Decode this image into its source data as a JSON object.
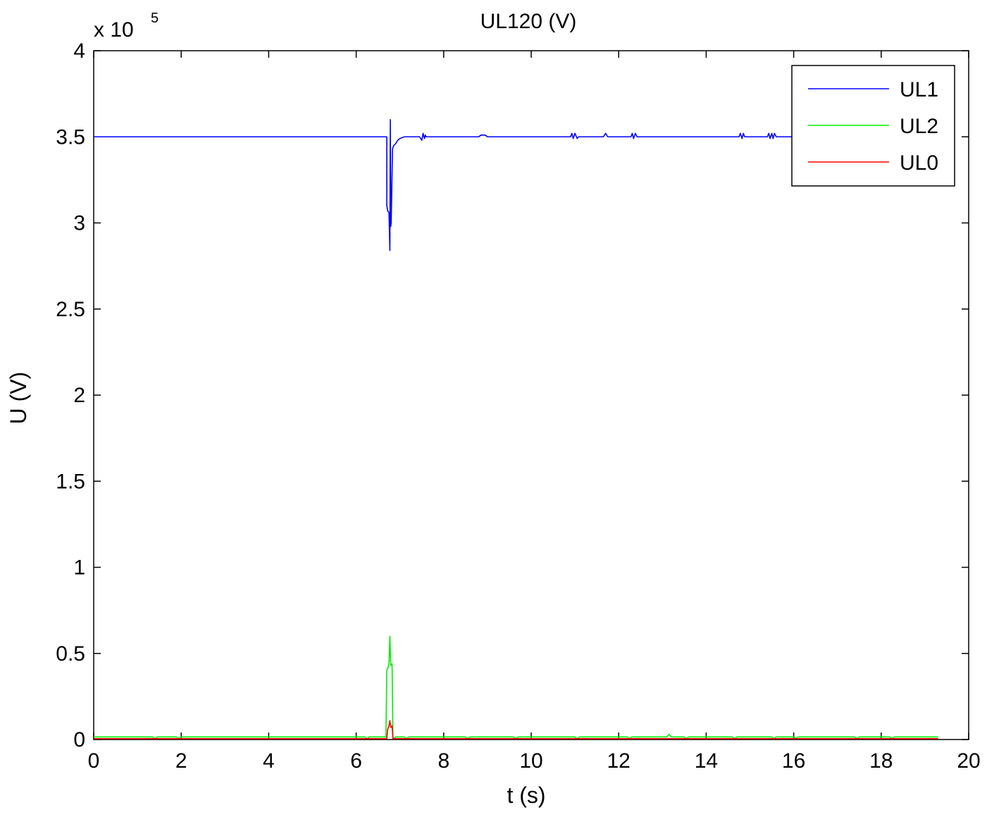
{
  "chart_data": {
    "type": "line",
    "title": "UL120 (V)",
    "xlabel": "t (s)",
    "ylabel": "U (V)",
    "xlim": [
      0,
      20
    ],
    "ylim": [
      0,
      4
    ],
    "y_multiplier_label": "x 10",
    "y_multiplier_exponent": "5",
    "xticks": [
      "0",
      "2",
      "4",
      "6",
      "8",
      "10",
      "12",
      "14",
      "16",
      "18",
      "20"
    ],
    "yticks": [
      "0",
      "0.5",
      "1",
      "1.5",
      "2",
      "2.5",
      "3",
      "3.5",
      "4"
    ],
    "grid": false,
    "legend_position": "top-right",
    "series": [
      {
        "name": "UL1",
        "color": "#0000ff",
        "points": [
          [
            0,
            3.5
          ],
          [
            6.7,
            3.5
          ],
          [
            6.7,
            3.1
          ],
          [
            6.72,
            3.07
          ],
          [
            6.75,
            3.06
          ],
          [
            6.77,
            2.84
          ],
          [
            6.78,
            3.6
          ],
          [
            6.79,
            2.98
          ],
          [
            6.8,
            3.0
          ],
          [
            6.83,
            3.43
          ],
          [
            6.86,
            3.45
          ],
          [
            6.9,
            3.46
          ],
          [
            6.95,
            3.48
          ],
          [
            7.0,
            3.49
          ],
          [
            7.1,
            3.5
          ],
          [
            7.45,
            3.5
          ],
          [
            7.5,
            3.48
          ],
          [
            7.53,
            3.52
          ],
          [
            7.56,
            3.49
          ],
          [
            7.58,
            3.51
          ],
          [
            7.6,
            3.5
          ],
          [
            8.8,
            3.5
          ],
          [
            8.85,
            3.51
          ],
          [
            8.95,
            3.51
          ],
          [
            9.0,
            3.5
          ],
          [
            10.9,
            3.5
          ],
          [
            10.93,
            3.52
          ],
          [
            10.96,
            3.49
          ],
          [
            11.0,
            3.52
          ],
          [
            11.05,
            3.49
          ],
          [
            11.08,
            3.5
          ],
          [
            11.65,
            3.5
          ],
          [
            11.7,
            3.52
          ],
          [
            11.75,
            3.5
          ],
          [
            12.28,
            3.5
          ],
          [
            12.31,
            3.52
          ],
          [
            12.34,
            3.49
          ],
          [
            12.38,
            3.52
          ],
          [
            12.42,
            3.5
          ],
          [
            14.75,
            3.5
          ],
          [
            14.78,
            3.52
          ],
          [
            14.82,
            3.49
          ],
          [
            14.85,
            3.52
          ],
          [
            14.88,
            3.5
          ],
          [
            15.4,
            3.5
          ],
          [
            15.43,
            3.52
          ],
          [
            15.46,
            3.49
          ],
          [
            15.5,
            3.52
          ],
          [
            15.53,
            3.49
          ],
          [
            15.56,
            3.52
          ],
          [
            15.6,
            3.5
          ],
          [
            19.3,
            3.5
          ]
        ]
      },
      {
        "name": "UL2",
        "color": "#00ee00",
        "points": [
          [
            0,
            0.015
          ],
          [
            1.35,
            0.015
          ],
          [
            1.4,
            0.005
          ],
          [
            1.45,
            0.015
          ],
          [
            1.9,
            0.015
          ],
          [
            1.95,
            0.005
          ],
          [
            2.0,
            0.015
          ],
          [
            6.2,
            0.015
          ],
          [
            6.25,
            0.005
          ],
          [
            6.3,
            0.015
          ],
          [
            6.68,
            0.015
          ],
          [
            6.7,
            0.4
          ],
          [
            6.73,
            0.42
          ],
          [
            6.75,
            0.44
          ],
          [
            6.77,
            0.6
          ],
          [
            6.79,
            0.43
          ],
          [
            6.82,
            0.44
          ],
          [
            6.84,
            0.015
          ],
          [
            6.86,
            0.005
          ],
          [
            6.9,
            0.015
          ],
          [
            7.1,
            0.015
          ],
          [
            7.15,
            0.005
          ],
          [
            7.2,
            0.015
          ],
          [
            8.5,
            0.015
          ],
          [
            8.55,
            0.005
          ],
          [
            8.6,
            0.015
          ],
          [
            9.6,
            0.015
          ],
          [
            9.65,
            0.005
          ],
          [
            9.7,
            0.015
          ],
          [
            11.0,
            0.015
          ],
          [
            11.05,
            0.005
          ],
          [
            11.1,
            0.015
          ],
          [
            12.2,
            0.015
          ],
          [
            12.25,
            0.005
          ],
          [
            12.3,
            0.015
          ],
          [
            13.1,
            0.015
          ],
          [
            13.15,
            0.03
          ],
          [
            13.2,
            0.015
          ],
          [
            13.5,
            0.015
          ],
          [
            13.55,
            0.005
          ],
          [
            13.6,
            0.015
          ],
          [
            14.6,
            0.015
          ],
          [
            14.65,
            0.005
          ],
          [
            14.7,
            0.015
          ],
          [
            15.5,
            0.015
          ],
          [
            15.55,
            0.005
          ],
          [
            15.6,
            0.015
          ],
          [
            16.0,
            0.015
          ],
          [
            16.05,
            0.005
          ],
          [
            16.1,
            0.015
          ],
          [
            17.4,
            0.015
          ],
          [
            17.45,
            0.005
          ],
          [
            17.5,
            0.015
          ],
          [
            18.2,
            0.015
          ],
          [
            18.25,
            0.005
          ],
          [
            18.3,
            0.015
          ],
          [
            19.3,
            0.015
          ]
        ]
      },
      {
        "name": "UL0",
        "color": "#ff0000",
        "points": [
          [
            0,
            0.005
          ],
          [
            6.7,
            0.005
          ],
          [
            6.72,
            0.06
          ],
          [
            6.75,
            0.08
          ],
          [
            6.77,
            0.11
          ],
          [
            6.79,
            0.07
          ],
          [
            6.82,
            0.08
          ],
          [
            6.84,
            0.005
          ],
          [
            19.3,
            0.005
          ]
        ]
      }
    ]
  }
}
